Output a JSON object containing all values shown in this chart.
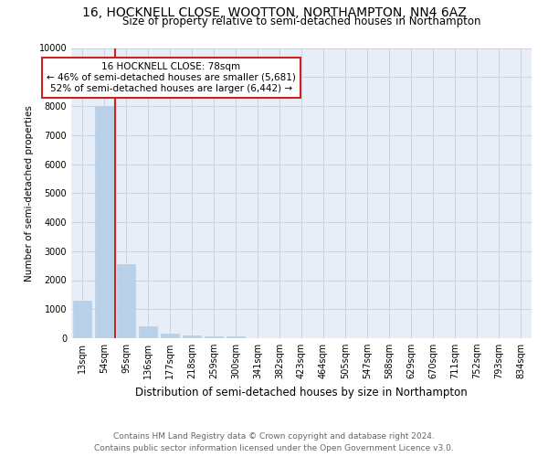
{
  "title": "16, HOCKNELL CLOSE, WOOTTON, NORTHAMPTON, NN4 6AZ",
  "subtitle": "Size of property relative to semi-detached houses in Northampton",
  "xlabel": "Distribution of semi-detached houses by size in Northampton",
  "ylabel": "Number of semi-detached properties",
  "categories": [
    "13sqm",
    "54sqm",
    "95sqm",
    "136sqm",
    "177sqm",
    "218sqm",
    "259sqm",
    "300sqm",
    "341sqm",
    "382sqm",
    "423sqm",
    "464sqm",
    "505sqm",
    "547sqm",
    "588sqm",
    "629sqm",
    "670sqm",
    "711sqm",
    "752sqm",
    "793sqm",
    "834sqm"
  ],
  "values": [
    1300,
    8000,
    2550,
    400,
    150,
    100,
    65,
    50,
    0,
    0,
    0,
    0,
    0,
    0,
    0,
    0,
    0,
    0,
    0,
    0,
    0
  ],
  "bar_color": "#b8d0e8",
  "bar_edgecolor": "#b8d0e8",
  "vline_color": "#cc2222",
  "vline_pos": 1.5,
  "annotation_text": "16 HOCKNELL CLOSE: 78sqm\n← 46% of semi-detached houses are smaller (5,681)\n52% of semi-detached houses are larger (6,442) →",
  "annotation_box_facecolor": "#ffffff",
  "annotation_box_edgecolor": "#cc2222",
  "ylim": [
    0,
    10000
  ],
  "yticks": [
    0,
    1000,
    2000,
    3000,
    4000,
    5000,
    6000,
    7000,
    8000,
    9000,
    10000
  ],
  "footer_line1": "Contains HM Land Registry data © Crown copyright and database right 2024.",
  "footer_line2": "Contains public sector information licensed under the Open Government Licence v3.0.",
  "background_color": "#ffffff",
  "plot_bg_color": "#e8eef8",
  "grid_color": "#c8d4e4",
  "title_fontsize": 10,
  "subtitle_fontsize": 8.5,
  "xlabel_fontsize": 8.5,
  "ylabel_fontsize": 7.5,
  "tick_fontsize": 7,
  "annotation_fontsize": 7.5,
  "footer_fontsize": 6.5
}
